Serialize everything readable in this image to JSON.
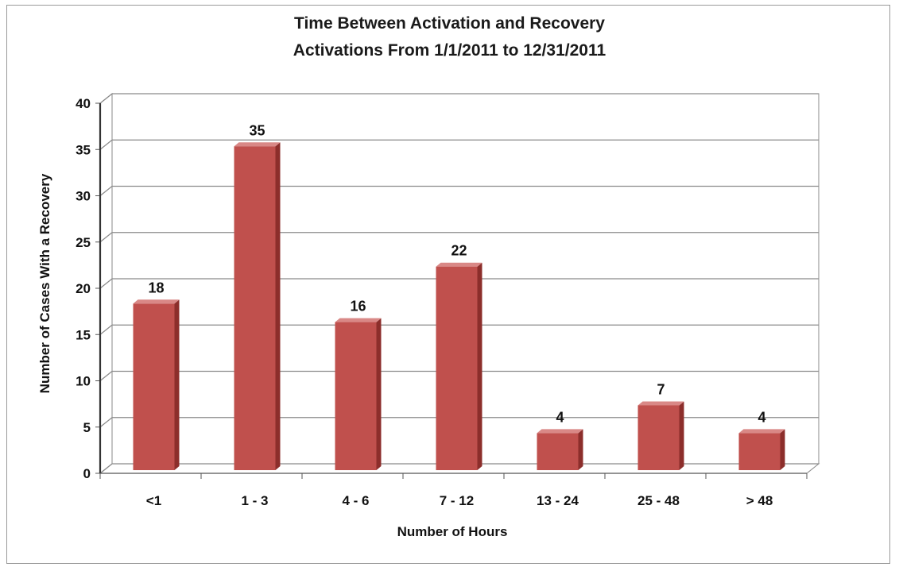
{
  "chart_data": {
    "type": "bar",
    "title": "Time Between Activation and Recovery",
    "subtitle": "Activations From 1/1/2011  to 12/31/2011",
    "xlabel": "Number of Hours",
    "ylabel": "Number of Cases With a Recovery",
    "categories": [
      "<1",
      "1 - 3",
      "4 - 6",
      "7 - 12",
      "13 - 24",
      "25 - 48",
      "> 48"
    ],
    "values": [
      18,
      35,
      16,
      22,
      4,
      7,
      4
    ],
    "ylim": [
      0,
      40
    ],
    "yticks": [
      0,
      5,
      10,
      15,
      20,
      25,
      30,
      35,
      40
    ],
    "grid": true,
    "legend": "none",
    "bar_color": "#c0504d",
    "bar_side_color": "#8c2e2b",
    "bar_top_color": "#d98886"
  }
}
